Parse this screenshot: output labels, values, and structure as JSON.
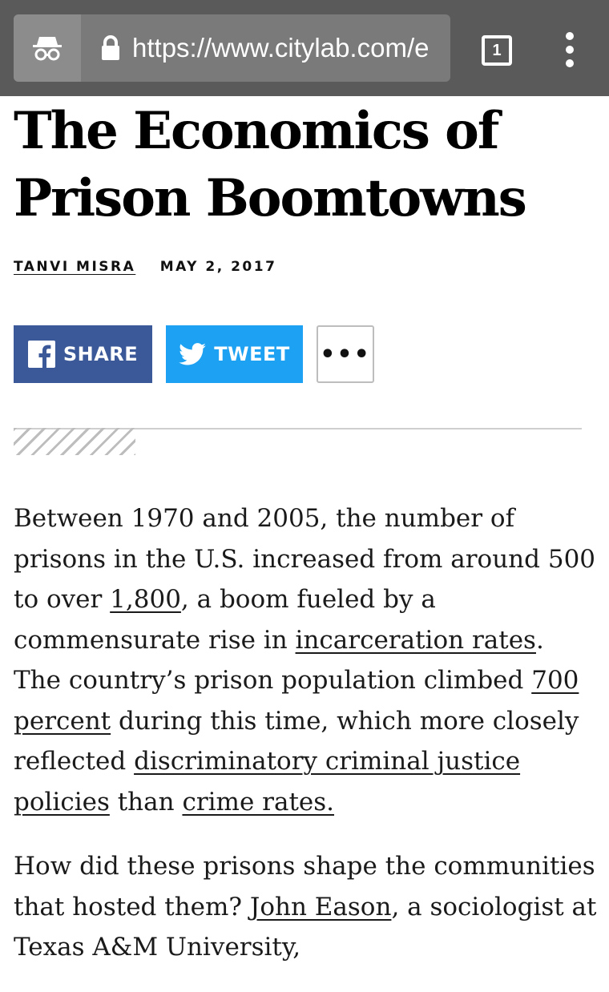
{
  "browser": {
    "url_text": "https://www.citylab.com/e",
    "tab_count": "1",
    "incognito_icon": "incognito-icon",
    "lock_icon": "lock-icon",
    "menu_icon": "overflow-menu-icon"
  },
  "article": {
    "title": "The Economics of Prison Boomtowns",
    "author": "TANVI MISRA",
    "date": "MAY 2, 2017"
  },
  "share": {
    "facebook_label": "SHARE",
    "twitter_label": "TWEET",
    "more_label": "•••",
    "facebook_color": "#3b5998",
    "twitter_color": "#1da1f2"
  },
  "body": {
    "p1": {
      "t1": "Between 1970 and 2005, the number of prisons in the U.S. increased from around 500 to over ",
      "l1": "1,800",
      "t2": ", a boom fueled by a commensurate rise in ",
      "l2": "incarceration rates",
      "t3": ". The country’s prison population climbed ",
      "l3": "700 percent",
      "t4": " during this time, which more closely reflected ",
      "l4": "discriminatory criminal justice policies",
      "t5": " than ",
      "l5": "crime rates."
    },
    "p2": {
      "t1": "How did these prisons shape the communities that hosted them? ",
      "l1": "John Eason",
      "t2": ", a sociologist at Texas A&M University,"
    }
  }
}
